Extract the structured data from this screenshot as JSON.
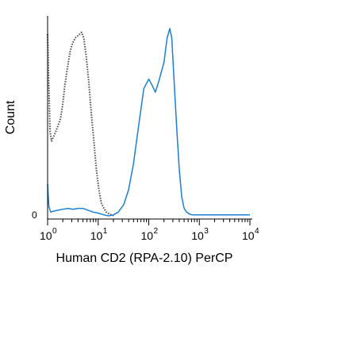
{
  "chart_data": {
    "type": "line",
    "xlabel": "Human CD2 (RPA-2.10) PerCP",
    "ylabel": "Count",
    "y_tick_label": "0",
    "x_scale": "log",
    "xlim": [
      1,
      10000
    ],
    "ylim": [
      0,
      100
    ],
    "x_ticks": [
      {
        "value": 1,
        "base": "10",
        "exp": "0"
      },
      {
        "value": 10,
        "base": "10",
        "exp": "1"
      },
      {
        "value": 100,
        "base": "10",
        "exp": "2"
      },
      {
        "value": 1000,
        "base": "10",
        "exp": "3"
      },
      {
        "value": 10000,
        "base": "10",
        "exp": "4"
      }
    ],
    "grid": false,
    "legend": "none",
    "series": [
      {
        "style": "dotted",
        "color": "#555555",
        "x": [
          1.0,
          1.05,
          1.12,
          1.2,
          1.3,
          1.45,
          1.6,
          1.8,
          2.0,
          2.2,
          2.5,
          2.8,
          3.1,
          3.5,
          3.9,
          4.3,
          4.7,
          5.2,
          5.8,
          6.5,
          7.3,
          8.2,
          9.2,
          10.3,
          11.5,
          13.0,
          14.5,
          16.5,
          18.5,
          21.0
        ],
        "y": [
          97,
          72,
          45,
          40,
          42,
          45,
          48,
          52,
          60,
          70,
          80,
          88,
          92,
          95,
          96,
          97,
          98,
          95,
          85,
          72,
          55,
          40,
          25,
          14,
          7,
          4,
          2,
          1,
          0.5,
          0
        ]
      },
      {
        "style": "solid",
        "color": "#1a7fd6",
        "x": [
          1.0,
          1.06,
          1.15,
          1.3,
          1.6,
          2.0,
          2.5,
          3.2,
          4.0,
          5.0,
          6.3,
          8.0,
          10.0,
          13.0,
          16.0,
          20.0,
          25.0,
          32.0,
          40.0,
          50.0,
          63.0,
          80.0,
          100.0,
          115.0,
          135.0,
          158.0,
          200.0,
          230.0,
          260.0,
          285.0,
          320.0,
          360.0,
          400.0,
          450.0,
          500.0,
          560.0,
          630.0,
          720.0,
          1000.0,
          10000.0
        ],
        "y": [
          17,
          5,
          2,
          2.5,
          3,
          3.5,
          4,
          3.5,
          4,
          4,
          3,
          2,
          1.5,
          0.5,
          0,
          0.5,
          2,
          6,
          14,
          28,
          48,
          68,
          73,
          70,
          66,
          72,
          82,
          95,
          100,
          95,
          70,
          45,
          25,
          10,
          4,
          2,
          1,
          0.5,
          0.5,
          0.5
        ]
      }
    ]
  }
}
